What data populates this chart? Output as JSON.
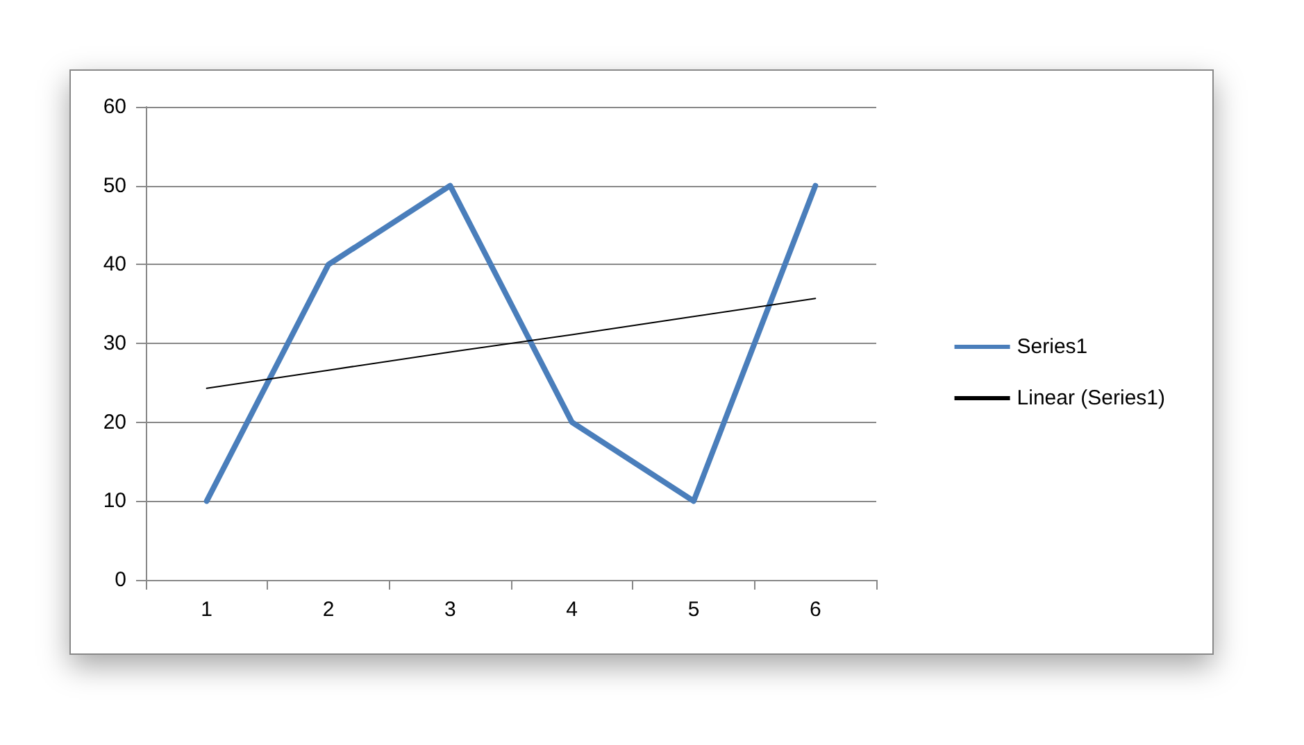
{
  "chart_data": {
    "type": "line",
    "categories": [
      "1",
      "2",
      "3",
      "4",
      "5",
      "6"
    ],
    "series": [
      {
        "name": "Series1",
        "color": "#4a7ebb",
        "values": [
          10,
          40,
          50,
          20,
          10,
          50
        ]
      },
      {
        "name": "Linear (Series1)",
        "type": "line",
        "color": "#000000",
        "values": [
          24.3,
          26.6,
          28.9,
          31.1,
          33.4,
          35.7
        ]
      }
    ],
    "ylim": [
      0,
      60
    ],
    "yticks": [
      0,
      10,
      20,
      30,
      40,
      50,
      60
    ],
    "grid": "y",
    "legend": "right",
    "marker": "none"
  }
}
